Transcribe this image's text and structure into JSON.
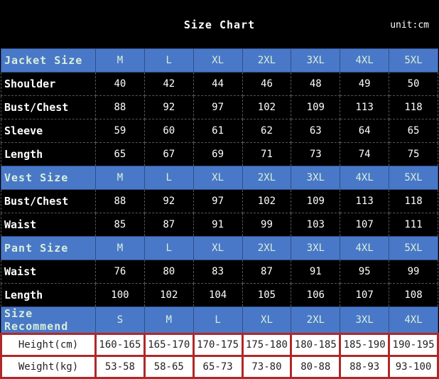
{
  "title": "Size Chart",
  "unit": "unit:cm",
  "sections": [
    {
      "header": "Jacket Size",
      "sizes": [
        "M",
        "L",
        "XL",
        "2XL",
        "3XL",
        "4XL",
        "5XL"
      ],
      "rows": [
        {
          "label": "Shoulder",
          "values": [
            "40",
            "42",
            "44",
            "46",
            "48",
            "49",
            "50"
          ]
        },
        {
          "label": "Bust/Chest",
          "values": [
            "88",
            "92",
            "97",
            "102",
            "109",
            "113",
            "118"
          ]
        },
        {
          "label": "Sleeve",
          "values": [
            "59",
            "60",
            "61",
            "62",
            "63",
            "64",
            "65"
          ]
        },
        {
          "label": "Length",
          "values": [
            "65",
            "67",
            "69",
            "71",
            "73",
            "74",
            "75"
          ]
        }
      ]
    },
    {
      "header": "Vest Size",
      "sizes": [
        "M",
        "L",
        "XL",
        "2XL",
        "3XL",
        "4XL",
        "5XL"
      ],
      "rows": [
        {
          "label": "Bust/Chest",
          "values": [
            "88",
            "92",
            "97",
            "102",
            "109",
            "113",
            "118"
          ]
        },
        {
          "label": "Waist",
          "values": [
            "85",
            "87",
            "91",
            "99",
            "103",
            "107",
            "111"
          ]
        }
      ]
    },
    {
      "header": "Pant Size",
      "sizes": [
        "M",
        "L",
        "XL",
        "2XL",
        "3XL",
        "4XL",
        "5XL"
      ],
      "rows": [
        {
          "label": "Waist",
          "values": [
            "76",
            "80",
            "83",
            "87",
            "91",
            "95",
            "99"
          ]
        },
        {
          "label": "Length",
          "values": [
            "100",
            "102",
            "104",
            "105",
            "106",
            "107",
            "108"
          ]
        }
      ]
    }
  ],
  "recommend": {
    "header": "Size Recommend",
    "sizes": [
      "S",
      "M",
      "L",
      "XL",
      "2XL",
      "3XL",
      "4XL"
    ],
    "rows": [
      {
        "label": "Height(cm)",
        "values": [
          "160-165",
          "165-170",
          "170-175",
          "175-180",
          "180-185",
          "185-190",
          "190-195"
        ]
      },
      {
        "label": "Weight(kg)",
        "values": [
          "53-58",
          "58-65",
          "65-73",
          "73-80",
          "80-88",
          "88-93",
          "93-100"
        ]
      }
    ]
  },
  "colors": {
    "header_bg": "#4a78c8",
    "background": "#000000",
    "recommend_border": "#b02828"
  }
}
